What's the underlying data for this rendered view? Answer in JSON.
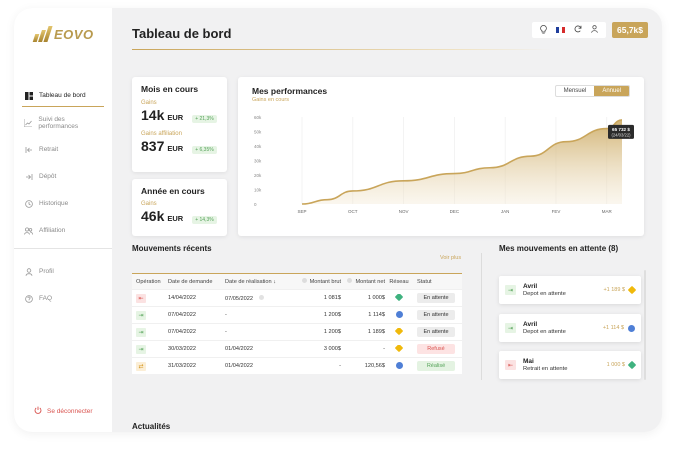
{
  "brand": {
    "name": "EOVO"
  },
  "sidebar": {
    "items": [
      {
        "label": "Tableau de bord"
      },
      {
        "label": "Suivi des performances"
      },
      {
        "label": "Retrait"
      },
      {
        "label": "Dépôt"
      },
      {
        "label": "Historique"
      },
      {
        "label": "Affiliation"
      }
    ],
    "items2": [
      {
        "label": "Profil"
      },
      {
        "label": "FAQ"
      }
    ],
    "logout": "Se déconnecter"
  },
  "header": {
    "title": "Tableau de bord",
    "balance": "65,7k$"
  },
  "month": {
    "title": "Mois en cours",
    "gains_label": "Gains",
    "gains_value": "14k",
    "gains_unit": "EUR",
    "gains_pct": "+ 21,3%",
    "aff_label": "Gains affiliation",
    "aff_value": "837",
    "aff_unit": "EUR",
    "aff_pct": "+ 6,35%"
  },
  "year": {
    "title": "Année en cours",
    "gains_label": "Gains",
    "gains_value": "46k",
    "gains_unit": "EUR",
    "gains_pct": "+ 14,3%"
  },
  "performance": {
    "title": "Mes performances",
    "subtitle": "Gains en cours",
    "toggle": [
      "Mensuel",
      "Annuel"
    ],
    "active": "Annuel",
    "tooltip_value": "65 732 $",
    "tooltip_date": "(24/03/22)"
  },
  "chart_data": {
    "type": "area",
    "title": "Mes performances",
    "ylim": [
      0,
      60000
    ],
    "y_ticks": [
      "60k",
      "50k",
      "40k",
      "30k",
      "20k",
      "10k",
      "0"
    ],
    "categories": [
      "SEP",
      "OCT",
      "NOV",
      "DEC",
      "JAN",
      "FEV",
      "MAR"
    ],
    "x": [
      0,
      0.5,
      1,
      2,
      3,
      3.7,
      4.5,
      5.2,
      6,
      6.3
    ],
    "values": [
      0,
      3000,
      9000,
      16000,
      21000,
      25000,
      33000,
      43000,
      52000,
      58000
    ],
    "grid": "vertical"
  },
  "movements": {
    "title": "Mouvements récents",
    "more": "Voir plus",
    "columns": [
      "Opération",
      "Date de demande",
      "Date de réalisation ↓",
      "Montant brut",
      "Montant net",
      "Réseau",
      "Statut"
    ],
    "rows": [
      {
        "op": "withdraw",
        "date": "14/04/2022",
        "done": "07/05/2022",
        "brut": "1 081$",
        "net": "1 000$",
        "network": "green",
        "status": "En attente",
        "status_type": "wait"
      },
      {
        "op": "deposit",
        "date": "07/04/2022",
        "done": "-",
        "brut": "1 200$",
        "net": "1 114$",
        "network": "blue",
        "status": "En attente",
        "status_type": "wait"
      },
      {
        "op": "deposit",
        "date": "07/04/2022",
        "done": "-",
        "brut": "1 200$",
        "net": "1 189$",
        "network": "yellow",
        "status": "En attente",
        "status_type": "wait"
      },
      {
        "op": "deposit",
        "date": "30/03/2022",
        "done": "01/04/2022",
        "brut": "3 000$",
        "net": "-",
        "network": "yellow",
        "status": "Refusé",
        "status_type": "ref"
      },
      {
        "op": "swap",
        "date": "31/03/2022",
        "done": "01/04/2022",
        "brut": "-",
        "net": "120,56$",
        "network": "blue",
        "status": "Réalisé",
        "status_type": "ok"
      }
    ]
  },
  "pending": {
    "title": "Mes mouvements en attente (8)",
    "items": [
      {
        "type": "deposit",
        "title": "Avril",
        "subtitle": "Depot en attente",
        "amount": "+1 189 $",
        "network": "yellow"
      },
      {
        "type": "deposit",
        "title": "Avril",
        "subtitle": "Depot en attente",
        "amount": "+1 114 $",
        "network": "blue"
      },
      {
        "type": "withdraw",
        "title": "Mai",
        "subtitle": "Retrait en attente",
        "amount": "1 000 $",
        "network": "green"
      }
    ]
  },
  "news": {
    "title": "Actualités"
  }
}
